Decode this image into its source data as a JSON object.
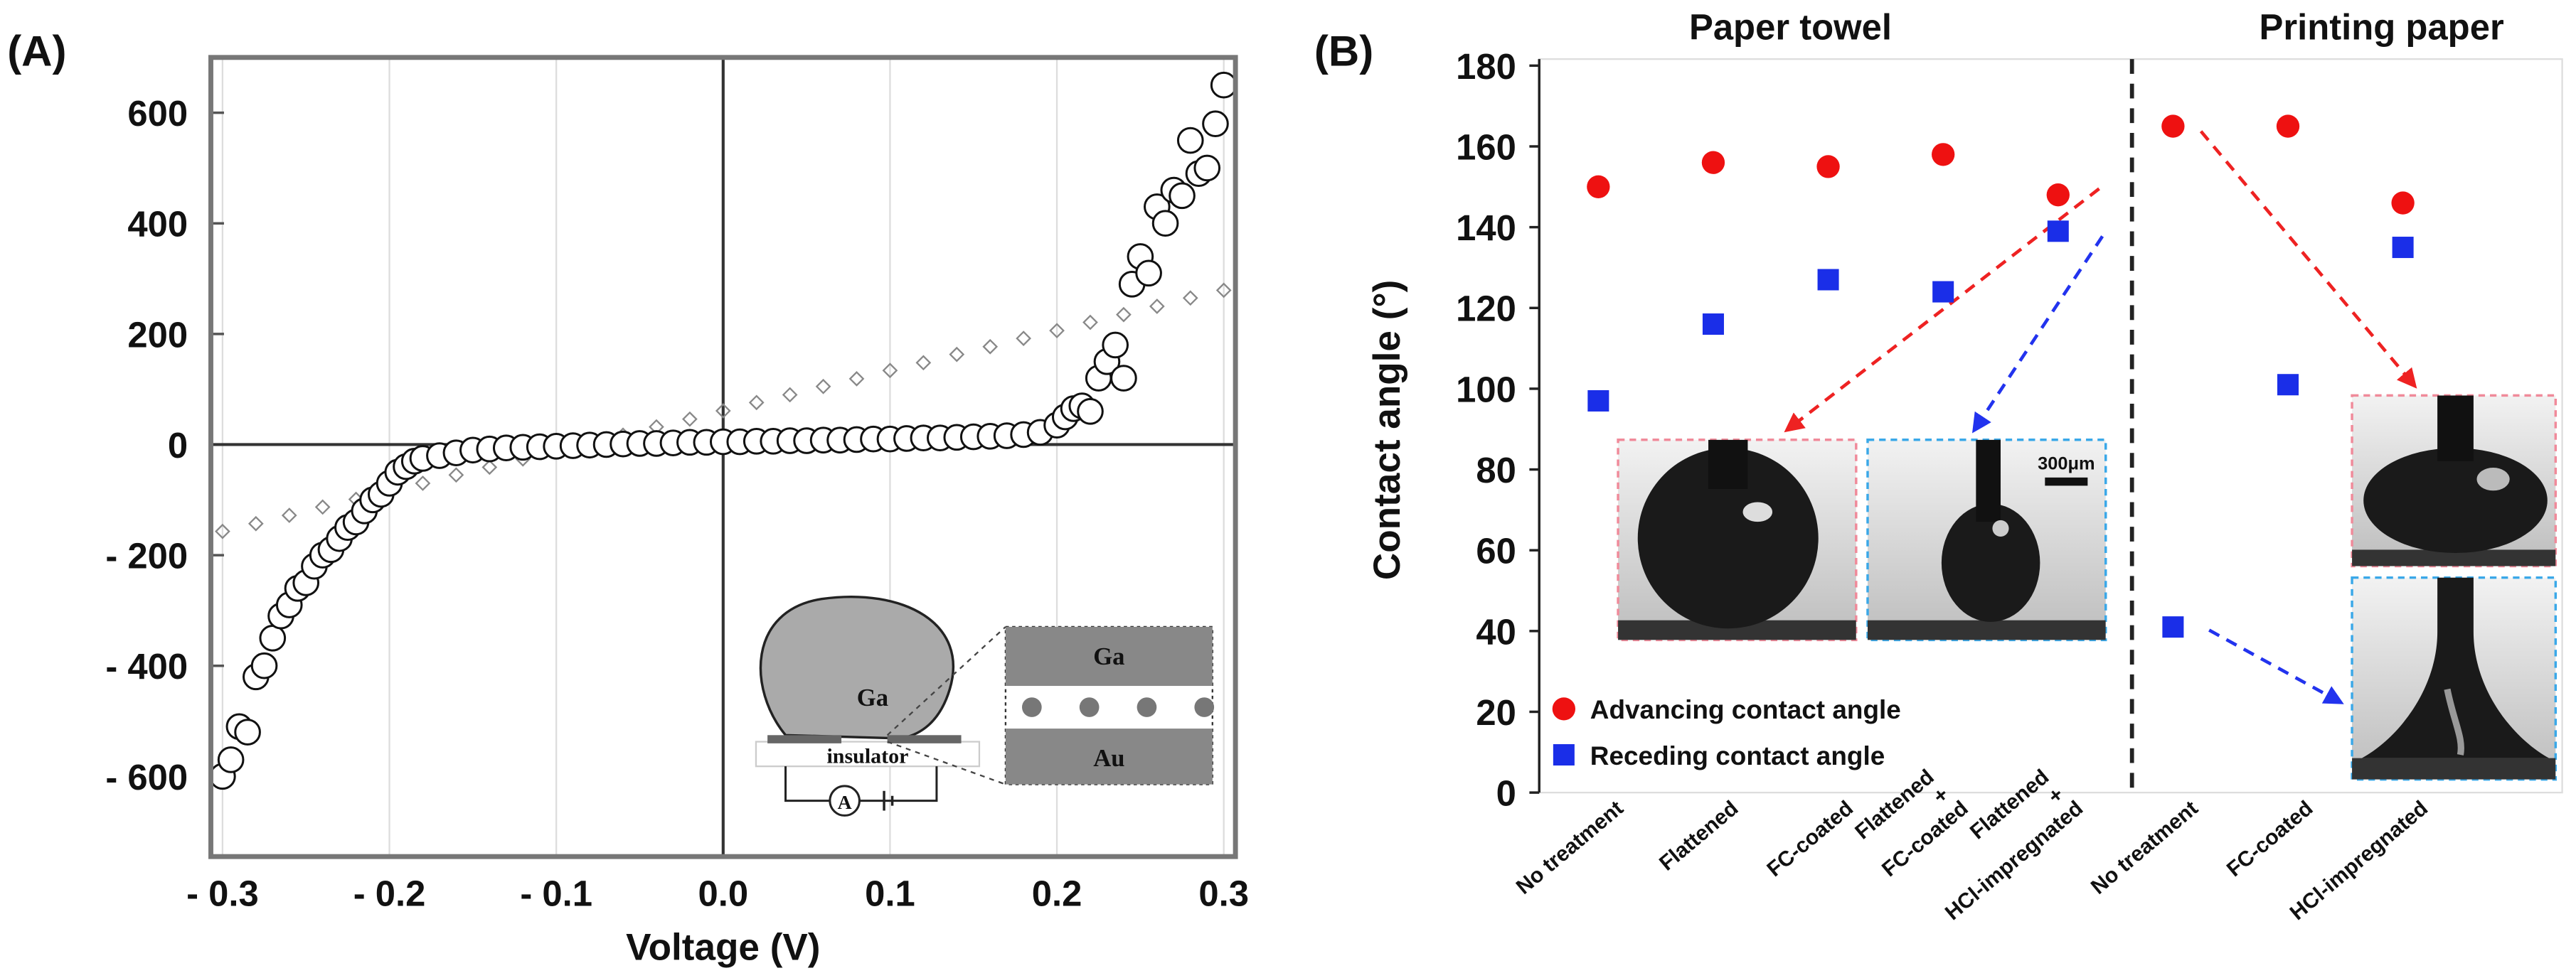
{
  "chart_data": [
    {
      "type": "scatter",
      "panel_label": "(A)",
      "x_label": "Voltage (V)",
      "inset_labels": [
        "Ga",
        "insulator",
        "A",
        "Ga",
        "Au"
      ],
      "xlim": [
        -0.307,
        0.307
      ],
      "xticks": [
        {
          "value": -0.3,
          "label": "- 0.3"
        },
        {
          "value": -0.2,
          "label": "- 0.2"
        },
        {
          "value": -0.1,
          "label": "- 0.1"
        },
        {
          "value": 0,
          "label": "0.0"
        },
        0.1,
        0.2,
        0.3
      ],
      "ylim": [
        -745,
        700
      ],
      "yticks": [
        {
          "value": -600,
          "label": "- 600"
        },
        {
          "value": -400,
          "label": "- 400"
        },
        {
          "value": -200,
          "label": "- 200"
        },
        0,
        200,
        400,
        600
      ],
      "grid": true,
      "series": [
        {
          "marker": "diamond",
          "color": "#888888",
          "x": [
            -0.3,
            -0.28,
            -0.26,
            -0.24,
            -0.22,
            -0.2,
            -0.18,
            -0.16,
            -0.14,
            -0.12,
            -0.1,
            -0.08,
            -0.06,
            -0.04,
            -0.02,
            0,
            0.02,
            0.04,
            0.06,
            0.08,
            0.1,
            0.12,
            0.14,
            0.16,
            0.18,
            0.2,
            0.22,
            0.24,
            0.26,
            0.28,
            0.3
          ],
          "values": [
            -157,
            -143,
            -128,
            -113,
            -99,
            -84,
            -70,
            -55,
            -41,
            -26,
            -12,
            3,
            17,
            32,
            46,
            61,
            76,
            90,
            105,
            119,
            134,
            148,
            163,
            177,
            192,
            206,
            221,
            235,
            250,
            265,
            279
          ]
        },
        {
          "marker": "circle",
          "color": "#111111",
          "x": [
            -0.3,
            -0.295,
            -0.29,
            -0.285,
            -0.28,
            -0.275,
            -0.27,
            -0.265,
            -0.26,
            -0.255,
            -0.25,
            -0.245,
            -0.24,
            -0.235,
            -0.23,
            -0.225,
            -0.22,
            -0.215,
            -0.21,
            -0.205,
            -0.2,
            -0.195,
            -0.19,
            -0.185,
            -0.18,
            -0.17,
            -0.16,
            -0.15,
            -0.14,
            -0.13,
            -0.12,
            -0.11,
            -0.1,
            -0.09,
            -0.08,
            -0.07,
            -0.06,
            -0.05,
            -0.04,
            -0.03,
            -0.02,
            -0.01,
            0.0,
            0.01,
            0.02,
            0.03,
            0.04,
            0.05,
            0.06,
            0.07,
            0.08,
            0.09,
            0.1,
            0.11,
            0.12,
            0.13,
            0.14,
            0.15,
            0.16,
            0.17,
            0.18,
            0.19,
            0.2,
            0.205,
            0.21,
            0.215,
            0.22,
            0.225,
            0.23,
            0.235,
            0.24,
            0.245,
            0.25,
            0.255,
            0.26,
            0.265,
            0.27,
            0.275,
            0.28,
            0.285,
            0.29,
            0.295,
            0.3
          ],
          "values": [
            -600,
            -570,
            -510,
            -520,
            -420,
            -400,
            -350,
            -310,
            -290,
            -260,
            -250,
            -220,
            -200,
            -190,
            -170,
            -150,
            -140,
            -120,
            -100,
            -90,
            -70,
            -50,
            -40,
            -30,
            -25,
            -20,
            -15,
            -10,
            -8,
            -6,
            -5,
            -4,
            -3,
            -2,
            -1,
            0,
            1,
            2,
            2,
            3,
            4,
            4,
            5,
            5,
            6,
            6,
            7,
            7,
            8,
            8,
            9,
            10,
            10,
            11,
            12,
            12,
            13,
            14,
            15,
            16,
            18,
            22,
            35,
            50,
            65,
            70,
            60,
            120,
            150,
            180,
            120,
            290,
            340,
            310,
            430,
            400,
            460,
            450,
            550,
            490,
            500,
            580,
            650
          ]
        }
      ]
    },
    {
      "type": "scatter",
      "panel_label": "(B)",
      "y_label": "Contact angle (°)",
      "group_labels": [
        "Paper towel",
        "Printing paper"
      ],
      "scale_bar": "300μm",
      "categories": [
        "No treatment",
        "Flattened",
        "FC-coated",
        "Flattened + FC-coated",
        "Flattened + HCl-impregnated",
        "No treatment",
        "FC-coated",
        "HCl-impregnated"
      ],
      "ylim": [
        0,
        180
      ],
      "yticks": [
        0,
        20,
        40,
        60,
        80,
        100,
        120,
        140,
        160,
        180
      ],
      "legend": "lower left",
      "series": [
        {
          "name": "Advancing contact angle",
          "marker": "circle",
          "color": "#ee1111",
          "values": [
            150,
            156,
            155,
            158,
            148,
            165,
            165,
            146
          ]
        },
        {
          "name": "Receding contact angle",
          "marker": "square",
          "color": "#1a2ee8",
          "values": [
            97,
            116,
            127,
            124,
            139,
            41,
            101,
            135
          ]
        }
      ]
    }
  ]
}
